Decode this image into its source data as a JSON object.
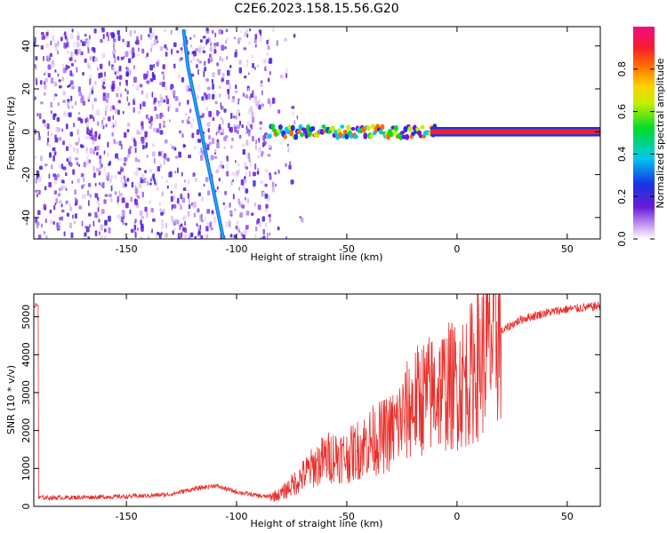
{
  "figure_title": "C2E6.2023.158.15.56.G20",
  "colors": {
    "snr_line": "#e8302c",
    "spectral_ridge": "#2b6ff0",
    "background": "#ffffff"
  },
  "chart_data": [
    {
      "type": "heatmap",
      "title": "",
      "xlabel": "Height of straight line (km)",
      "ylabel": "Frequency (Hz)",
      "xlim": [
        -192,
        65
      ],
      "ylim": [
        -50,
        49
      ],
      "x_ticks": [
        -150,
        -100,
        -50,
        0,
        50
      ],
      "x_tick_labels": [
        "-150",
        "-100",
        "-50",
        "0",
        "50"
      ],
      "y_ticks": [
        -40,
        -20,
        0,
        20,
        40
      ],
      "y_tick_labels": [
        "-40",
        "-20",
        "0",
        "20",
        "40"
      ],
      "grid": false,
      "colorbar": {
        "label": "Normalized spectral amplitude",
        "range": [
          0.0,
          1.0
        ],
        "ticks": [
          0.0,
          0.2,
          0.4,
          0.6,
          0.8
        ],
        "tick_labels": [
          "0.0",
          "0.2",
          "0.4",
          "0.6",
          "0.8"
        ],
        "colormap": "purple-blue-cyan-green-yellow-red-magenta"
      },
      "features": {
        "carrier_line": {
          "frequency_hz": 0,
          "x_from": -85,
          "x_to": 65,
          "amplitude": 0.9
        },
        "doppler_ridge": {
          "points": [
            [
              -124,
              47
            ],
            [
              -122,
              30
            ],
            [
              -119,
              15
            ],
            [
              -117,
              5
            ],
            [
              -114,
              -10
            ],
            [
              -111,
              -25
            ],
            [
              -108,
              -40
            ],
            [
              -106,
              -50
            ]
          ]
        },
        "noisy_region": {
          "x_from": -192,
          "x_to": -80
        }
      }
    },
    {
      "type": "line",
      "title": "",
      "xlabel": "Height of straight line (km)",
      "ylabel": "SNR (10 * v/v)",
      "xlim": [
        -192,
        65
      ],
      "ylim": [
        0,
        5600
      ],
      "x_ticks": [
        -150,
        -100,
        -50,
        0,
        50
      ],
      "x_tick_labels": [
        "-150",
        "-100",
        "-50",
        "0",
        "50"
      ],
      "y_ticks": [
        0,
        1000,
        2000,
        3000,
        4000,
        5000
      ],
      "y_tick_labels": [
        "0",
        "1000",
        "2000",
        "3000",
        "4000",
        "5000"
      ],
      "grid": false,
      "series": [
        {
          "x": [
            -190,
            -180,
            -170,
            -160,
            -150,
            -140,
            -130,
            -120,
            -110,
            -100,
            -90,
            -85,
            -80,
            -75,
            -70,
            -65,
            -60,
            -55,
            -50,
            -45,
            -40,
            -35,
            -30,
            -25,
            -20,
            -15,
            -10,
            -5,
            0,
            5,
            10,
            15,
            20,
            25,
            30,
            40,
            50,
            60,
            65
          ],
          "y": [
            230,
            230,
            240,
            250,
            260,
            280,
            320,
            450,
            550,
            380,
            280,
            250,
            320,
            550,
            800,
            1050,
            1250,
            1350,
            1300,
            1500,
            1700,
            1800,
            1950,
            2300,
            2700,
            2900,
            3000,
            3150,
            3200,
            3400,
            3800,
            4300,
            4600,
            4800,
            4950,
            5100,
            5200,
            5250,
            5300
          ]
        }
      ]
    }
  ]
}
